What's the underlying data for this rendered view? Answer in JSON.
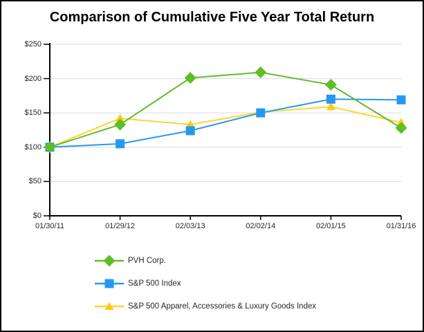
{
  "title": "Comparison of Cumulative Five Year Total Return",
  "colors": {
    "pvh_green": "#5FBE26",
    "sp500_blue": "#2499F0",
    "apparel_yellow_line": "#FFD42E",
    "apparel_yellow_marker": "#FFC90E",
    "gridline_gray": "#D9D9D9",
    "axis_black": "#000000"
  },
  "chart_data": {
    "type": "line",
    "title": "Comparison of Cumulative Five Year Total Return",
    "xlabel": "",
    "ylabel": "",
    "ylim": [
      0,
      250
    ],
    "grid": true,
    "legend_position": "bottom-left",
    "categories": [
      "01/30/11",
      "01/29/12",
      "02/03/13",
      "02/02/14",
      "02/01/15",
      "01/31/16"
    ],
    "y_tick_labels": [
      "$0",
      "$50",
      "$100",
      "$150",
      "$200",
      "$250"
    ],
    "y_tick_values": [
      0,
      50,
      100,
      150,
      200,
      250
    ],
    "series": [
      {
        "name": "PVH Corp.",
        "marker": "diamond",
        "color": "#5FBE26",
        "line_color": "#5FBE26",
        "values": [
          100,
          133,
          201,
          209,
          191,
          128
        ]
      },
      {
        "name": "S&P 500 Index",
        "marker": "square",
        "color": "#2499F0",
        "line_color": "#2499F0",
        "values": [
          100,
          105,
          124,
          150,
          170,
          169
        ]
      },
      {
        "name": "S&P 500 Apparel, Accessories & Luxury Goods Index",
        "marker": "triangle",
        "color": "#FFC90E",
        "line_color": "#FFD42E",
        "values": [
          100,
          142,
          133,
          151,
          159,
          136
        ]
      }
    ]
  }
}
